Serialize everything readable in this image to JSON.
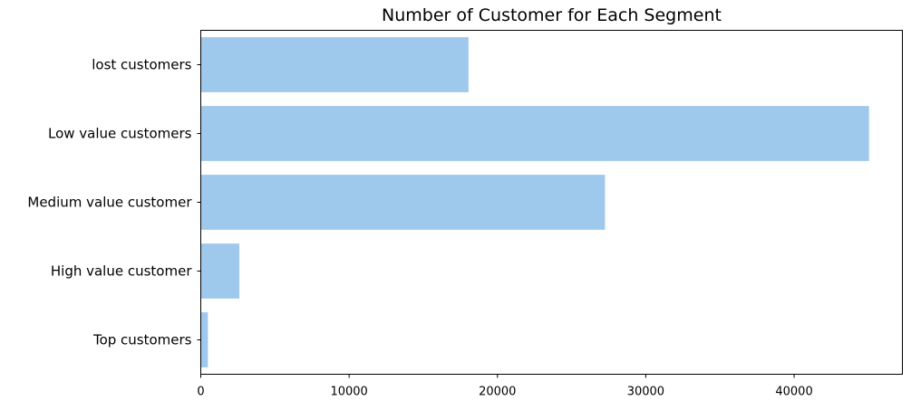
{
  "chart_data": {
    "type": "bar",
    "orientation": "horizontal",
    "title": "Number of Customer for Each Segment",
    "xlabel": "",
    "ylabel": "",
    "categories": [
      "lost customers",
      "Low value customers",
      "Medium value customer",
      "High value customer",
      "Top customers"
    ],
    "values": [
      18050,
      45050,
      27250,
      2600,
      480
    ],
    "xlim": [
      0,
      47300
    ],
    "xticks": [
      0,
      10000,
      20000,
      30000,
      40000
    ],
    "bar_color": "#9ec9ec",
    "grid": false,
    "legend": "none"
  }
}
